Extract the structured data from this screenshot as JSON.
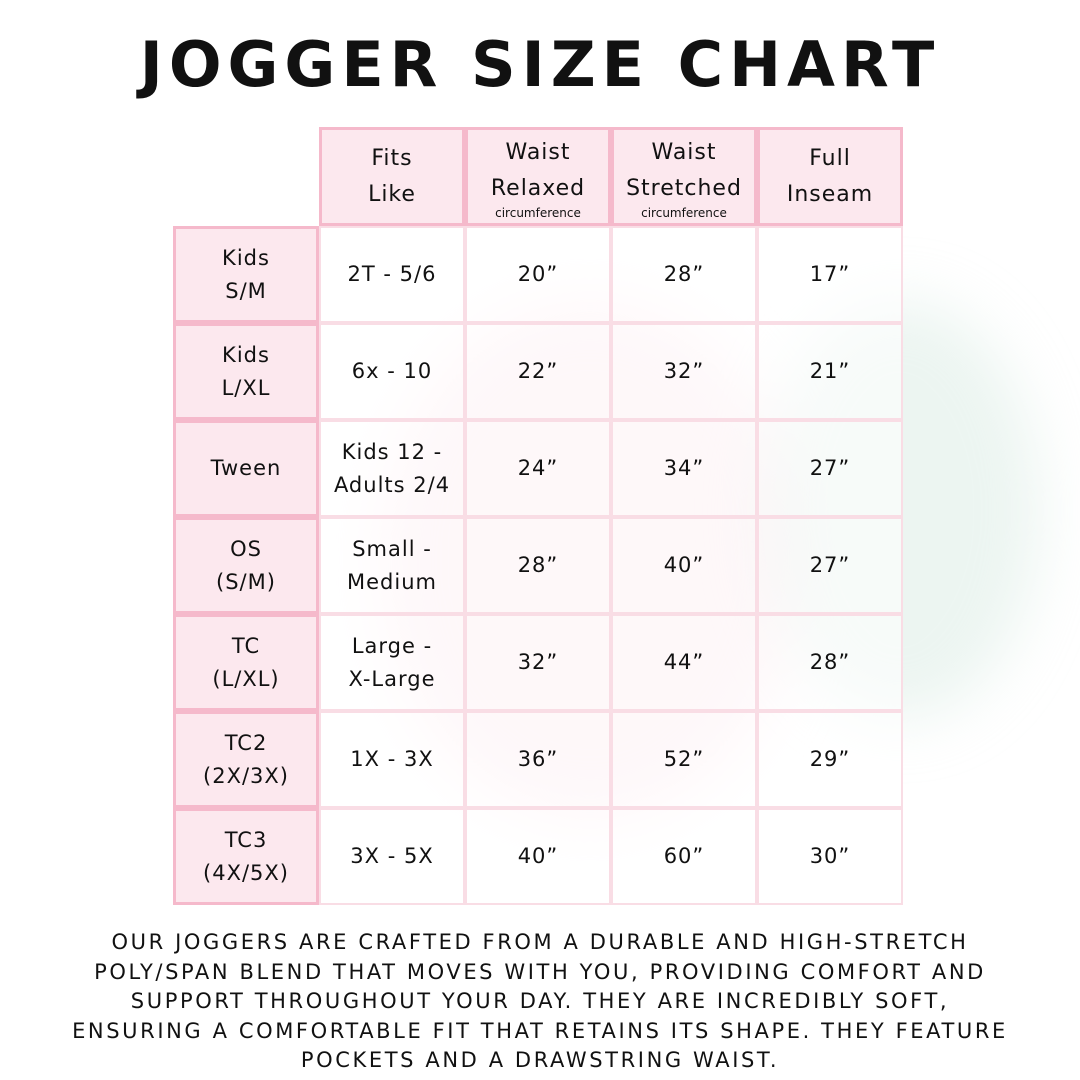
{
  "title": "JOGGER SIZE CHART",
  "colors": {
    "header_fill": "#fce8ee",
    "border": "#f5b9cb",
    "text": "#111111"
  },
  "columns": [
    {
      "line1": "Fits",
      "line2": "Like",
      "sub": ""
    },
    {
      "line1": "Waist",
      "line2": "Relaxed",
      "sub": "circumference"
    },
    {
      "line1": "Waist",
      "line2": "Stretched",
      "sub": "circumference"
    },
    {
      "line1": "Full",
      "line2": "Inseam",
      "sub": ""
    }
  ],
  "rows": [
    {
      "size1": "Kids",
      "size2": "S/M",
      "fits1": "2T - 5/6",
      "fits2": "",
      "relaxed": "20”",
      "stretched": "28”",
      "inseam": "17”"
    },
    {
      "size1": "Kids",
      "size2": "L/XL",
      "fits1": "6x - 10",
      "fits2": "",
      "relaxed": "22”",
      "stretched": "32”",
      "inseam": "21”"
    },
    {
      "size1": "Tween",
      "size2": "",
      "fits1": "Kids 12 -",
      "fits2": "Adults 2/4",
      "relaxed": "24”",
      "stretched": "34”",
      "inseam": "27”"
    },
    {
      "size1": "OS",
      "size2": "(S/M)",
      "fits1": "Small -",
      "fits2": "Medium",
      "relaxed": "28”",
      "stretched": "40”",
      "inseam": "27”"
    },
    {
      "size1": "TC",
      "size2": "(L/XL)",
      "fits1": "Large -",
      "fits2": "X-Large",
      "relaxed": "32”",
      "stretched": "44”",
      "inseam": "28”"
    },
    {
      "size1": "TC2",
      "size2": "(2X/3X)",
      "fits1": "1X - 3X",
      "fits2": "",
      "relaxed": "36”",
      "stretched": "52”",
      "inseam": "29”"
    },
    {
      "size1": "TC3",
      "size2": "(4X/5X)",
      "fits1": "3X - 5X",
      "fits2": "",
      "relaxed": "40”",
      "stretched": "60”",
      "inseam": "30”"
    }
  ],
  "description": [
    "Our joggers are crafted from a durable and high-stretch",
    "poly/span blend that moves with you, providing comfort and",
    "support throughout your day. They are incredibly soft,",
    "ensuring a comfortable fit that retains its shape. They feature",
    "pockets and a drawstring waist."
  ]
}
